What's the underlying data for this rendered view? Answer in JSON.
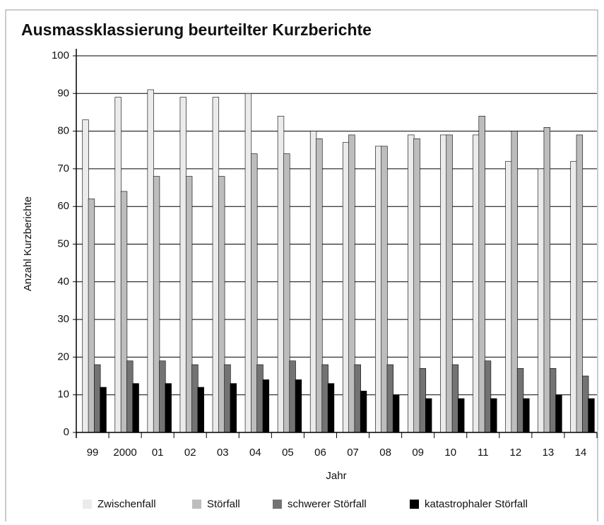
{
  "chart_data": {
    "type": "bar",
    "title": "Ausmassklassierung beurteilter Kurzberichte",
    "xlabel": "Jahr",
    "ylabel": "Anzahl Kurzberichte",
    "categories": [
      "99",
      "2000",
      "01",
      "02",
      "03",
      "04",
      "05",
      "06",
      "07",
      "08",
      "09",
      "10",
      "11",
      "12",
      "13",
      "14"
    ],
    "series": [
      {
        "name": "Zwischenfall",
        "color": "#ebebeb",
        "values": [
          83,
          89,
          91,
          89,
          89,
          90,
          84,
          80,
          77,
          76,
          79,
          79,
          79,
          72,
          70,
          72
        ]
      },
      {
        "name": "Störfall",
        "color": "#bdbdbd",
        "values": [
          62,
          64,
          68,
          68,
          68,
          74,
          74,
          78,
          79,
          76,
          78,
          79,
          84,
          80,
          81,
          79
        ]
      },
      {
        "name": "schwerer Störfall",
        "color": "#737373",
        "values": [
          18,
          19,
          19,
          18,
          18,
          18,
          19,
          18,
          18,
          18,
          17,
          18,
          19,
          17,
          17,
          15
        ]
      },
      {
        "name": "katastrophaler Störfall",
        "color": "#000000",
        "values": [
          12,
          13,
          13,
          12,
          13,
          14,
          14,
          13,
          11,
          10,
          9,
          9,
          9,
          9,
          10,
          9
        ]
      }
    ],
    "ylim": [
      0,
      100
    ],
    "yticks": [
      0,
      10,
      20,
      30,
      40,
      50,
      60,
      70,
      80,
      90,
      100
    ],
    "grid": true,
    "legend": "bottom"
  }
}
